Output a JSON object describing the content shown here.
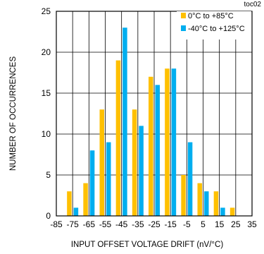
{
  "chart_data": {
    "type": "bar",
    "chart_id": "toc02",
    "xlabel": "INPUT OFFSET VOLTAGE DRIFT (nV/°C)",
    "ylabel": "NUMBER OF OCCURRENCES",
    "xlim": [
      -85,
      35
    ],
    "ylim": [
      0,
      25
    ],
    "xticks": [
      "-85",
      "-75",
      "-65",
      "-55",
      "-45",
      "-35",
      "-25",
      "-15",
      "-5",
      "5",
      "15",
      "25",
      "35"
    ],
    "yticks": [
      "0",
      "5",
      "10",
      "15",
      "20",
      "25"
    ],
    "grid": true,
    "legend_position": "top-right",
    "categories": [
      -75,
      -65,
      -55,
      -45,
      -35,
      -25,
      -15,
      -5,
      5,
      15,
      25
    ],
    "series": [
      {
        "name": "0°C to +85°C",
        "color": "#FFC000",
        "values": [
          3,
          4,
          13,
          19,
          13,
          17,
          18,
          5,
          4,
          3,
          1
        ]
      },
      {
        "name": "-40°C to +125°C",
        "color": "#00AEEF",
        "values": [
          1,
          8,
          9,
          23,
          11,
          16,
          18,
          9,
          3,
          1,
          0
        ]
      }
    ]
  }
}
